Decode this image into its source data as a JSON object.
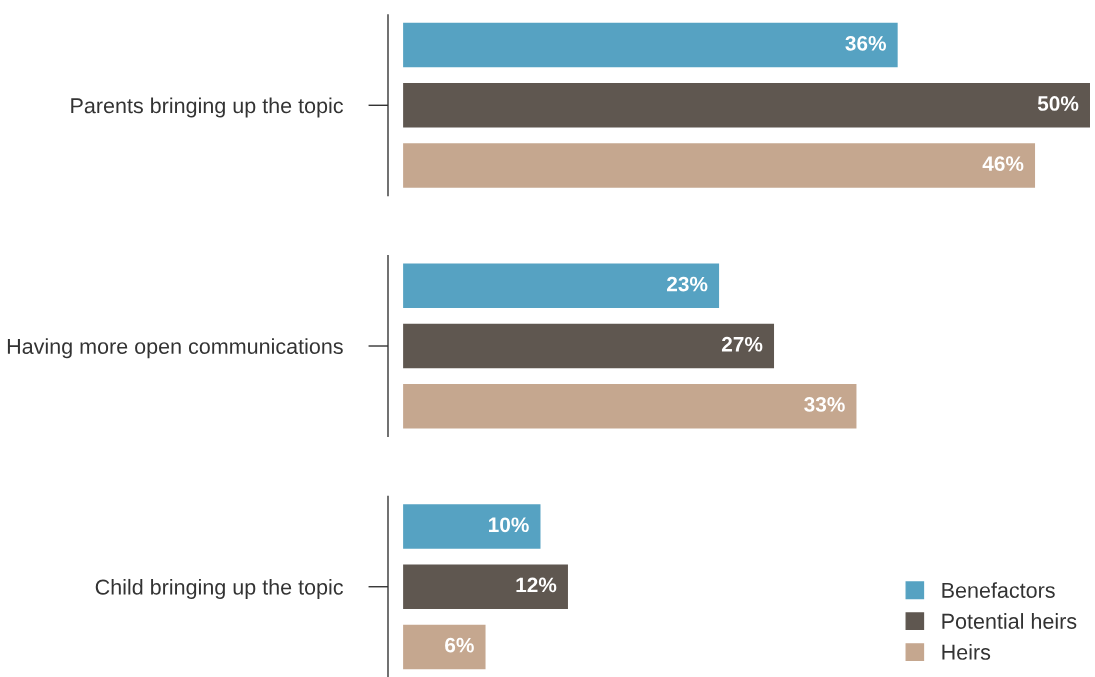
{
  "chart_data": {
    "type": "bar",
    "orientation": "horizontal",
    "categories": [
      "Parents bringing up the topic",
      "Having more open communications",
      "Child bringing up the topic"
    ],
    "series": [
      {
        "name": "Benefactors",
        "color": "#56a2c2",
        "values": [
          36,
          23,
          10
        ],
        "value_labels": [
          "36%",
          "23%",
          "10%"
        ]
      },
      {
        "name": "Potential heirs",
        "color": "#5f5750",
        "values": [
          50,
          27,
          12
        ],
        "value_labels": [
          "50%",
          "27%",
          "12%"
        ]
      },
      {
        "name": "Heirs",
        "color": "#c5a78f",
        "values": [
          46,
          33,
          6
        ],
        "value_labels": [
          "46%",
          "33%",
          "6%"
        ]
      }
    ],
    "legend": "bottom right",
    "grid": false
  }
}
